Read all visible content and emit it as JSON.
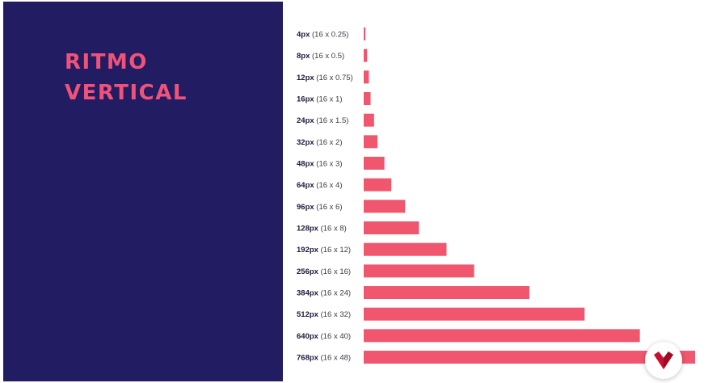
{
  "title": {
    "line1": "RITMO",
    "line2": "VERTICAL"
  },
  "colors": {
    "panel": "#221c63",
    "accent": "#f0527a",
    "bar": "#f0566e"
  },
  "chart_data": {
    "type": "bar",
    "orientation": "horizontal",
    "title": "",
    "xlabel": "",
    "ylabel": "",
    "grid": false,
    "categories": [
      {
        "value": "4px",
        "detail": "(16 x 0.25)"
      },
      {
        "value": "8px",
        "detail": "(16 x 0.5)"
      },
      {
        "value": "12px",
        "detail": "(16 x 0.75)"
      },
      {
        "value": "16px",
        "detail": "(16 x 1)"
      },
      {
        "value": "24px",
        "detail": "(16 x 1.5)"
      },
      {
        "value": "32px",
        "detail": "(16 x 2)"
      },
      {
        "value": "48px",
        "detail": "(16 x 3)"
      },
      {
        "value": "64px",
        "detail": "(16 x 4)"
      },
      {
        "value": "96px",
        "detail": "(16 x 6)"
      },
      {
        "value": "128px",
        "detail": "(16 x 8)"
      },
      {
        "value": "192px",
        "detail": "(16 x 12)"
      },
      {
        "value": "256px",
        "detail": "(16 x 16)"
      },
      {
        "value": "384px",
        "detail": "(16 x 24)"
      },
      {
        "value": "512px",
        "detail": "(16 x 32)"
      },
      {
        "value": "640px",
        "detail": "(16 x 40)"
      },
      {
        "value": "768px",
        "detail": "(16 x 48)"
      }
    ],
    "values": [
      4,
      8,
      12,
      16,
      24,
      32,
      48,
      64,
      96,
      128,
      192,
      256,
      384,
      512,
      640,
      768
    ]
  },
  "logo": {
    "icon": "brand-chevron-logo-icon",
    "color": "#c8102e"
  }
}
